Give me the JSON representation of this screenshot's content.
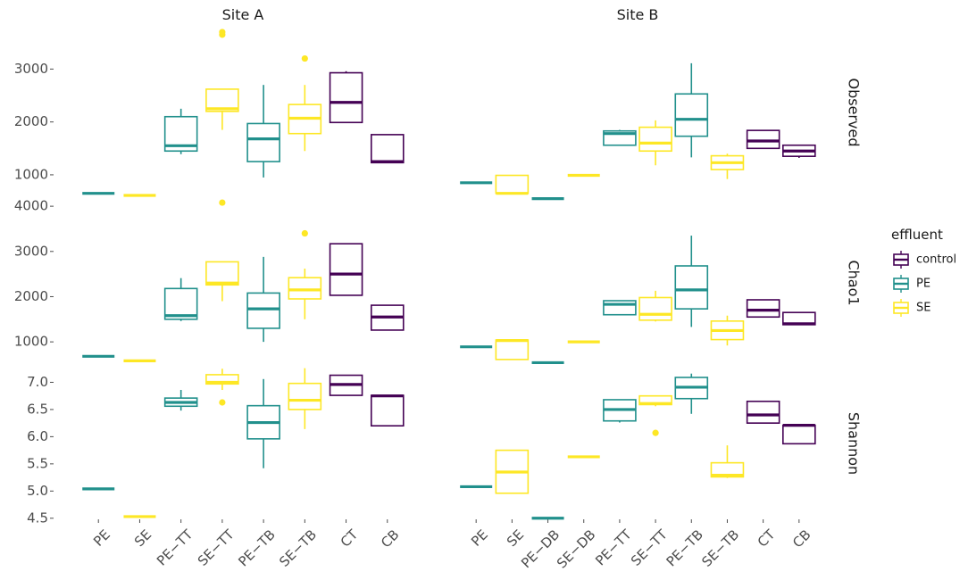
{
  "chart_data": {
    "type": "boxplot",
    "facet_columns": [
      "Site A",
      "Site B"
    ],
    "facet_rows": [
      "Observed",
      "Chao1",
      "Shannon"
    ],
    "legend": {
      "title": "effluent",
      "position": "right",
      "entries": [
        {
          "name": "control",
          "color": "#440154"
        },
        {
          "name": "PE",
          "color": "#21908C"
        },
        {
          "name": "SE",
          "color": "#FDE725"
        }
      ]
    },
    "x_categories": {
      "Site A": [
        "PE",
        "SE",
        "PE−TT",
        "SE−TT",
        "PE−TB",
        "SE−TB",
        "CT",
        "CB"
      ],
      "Site B": [
        "PE",
        "SE",
        "PE−DB",
        "SE−DB",
        "PE−TT",
        "SE−TT",
        "PE−TB",
        "SE−TB",
        "CT",
        "CB"
      ]
    },
    "y_axes": {
      "Observed": {
        "ylim": [
          560,
          3800
        ],
        "ticks": [
          1000,
          2000,
          3000
        ],
        "tick_labels": [
          "1000",
          "2000",
          "3000"
        ]
      },
      "Chao1": {
        "ylim": [
          430,
          4180
        ],
        "ticks": [
          1000,
          2000,
          3000,
          4000
        ],
        "tick_labels": [
          "1000",
          "2000",
          "3000",
          "4000"
        ]
      },
      "Shannon": {
        "ylim": [
          4.48,
          7.27
        ],
        "ticks": [
          4.5,
          5.0,
          5.5,
          6.0,
          6.5,
          7.0
        ],
        "tick_labels": [
          "4.5",
          "5.0",
          "5.5",
          "6.0",
          "6.5",
          "7.0"
        ]
      }
    },
    "panels": {
      "Observed": {
        "Site A": [
          {
            "cat": "PE",
            "group": "PE",
            "min": 650,
            "q1": 650,
            "med": 650,
            "q3": 650,
            "max": 650,
            "outliers": []
          },
          {
            "cat": "SE",
            "group": "SE",
            "min": 610,
            "q1": 610,
            "med": 610,
            "q3": 610,
            "max": 610,
            "outliers": []
          },
          {
            "cat": "PE−TT",
            "group": "PE",
            "min": 1390,
            "q1": 1450,
            "med": 1550,
            "q3": 2100,
            "max": 2250,
            "outliers": []
          },
          {
            "cat": "SE−TT",
            "group": "SE",
            "min": 1850,
            "q1": 2200,
            "med": 2250,
            "q3": 2620,
            "max": 2620,
            "outliers": [
              3650,
              3700
            ]
          },
          {
            "cat": "PE−TB",
            "group": "PE",
            "min": 950,
            "q1": 1250,
            "med": 1680,
            "q3": 1970,
            "max": 2700,
            "outliers": []
          },
          {
            "cat": "SE−TB",
            "group": "SE",
            "min": 1450,
            "q1": 1780,
            "med": 2070,
            "q3": 2330,
            "max": 2700,
            "outliers": [
              3200
            ]
          },
          {
            "cat": "CT",
            "group": "control",
            "min": 1990,
            "q1": 1990,
            "med": 2370,
            "q3": 2930,
            "max": 2960,
            "outliers": []
          },
          {
            "cat": "CB",
            "group": "control",
            "min": 1230,
            "q1": 1230,
            "med": 1250,
            "q3": 1760,
            "max": 1760,
            "outliers": []
          }
        ],
        "Site B": [
          {
            "cat": "PE",
            "group": "PE",
            "min": 850,
            "q1": 850,
            "med": 850,
            "q3": 850,
            "max": 850,
            "outliers": []
          },
          {
            "cat": "SE",
            "group": "SE",
            "min": 640,
            "q1": 650,
            "med": 650,
            "q3": 990,
            "max": 990,
            "outliers": []
          },
          {
            "cat": "PE−DB",
            "group": "PE",
            "min": 550,
            "q1": 550,
            "med": 550,
            "q3": 550,
            "max": 550,
            "outliers": []
          },
          {
            "cat": "SE−DB",
            "group": "SE",
            "min": 990,
            "q1": 990,
            "med": 990,
            "q3": 990,
            "max": 990,
            "outliers": []
          },
          {
            "cat": "PE−TT",
            "group": "PE",
            "min": 1560,
            "q1": 1560,
            "med": 1780,
            "q3": 1830,
            "max": 1850,
            "outliers": []
          },
          {
            "cat": "SE−TT",
            "group": "SE",
            "min": 1180,
            "q1": 1450,
            "med": 1600,
            "q3": 1900,
            "max": 2030,
            "outliers": []
          },
          {
            "cat": "PE−TB",
            "group": "PE",
            "min": 1330,
            "q1": 1730,
            "med": 2050,
            "q3": 2530,
            "max": 3110,
            "outliers": []
          },
          {
            "cat": "SE−TB",
            "group": "SE",
            "min": 920,
            "q1": 1100,
            "med": 1230,
            "q3": 1360,
            "max": 1400,
            "outliers": []
          },
          {
            "cat": "CT",
            "group": "control",
            "min": 1500,
            "q1": 1500,
            "med": 1640,
            "q3": 1840,
            "max": 1840,
            "outliers": []
          },
          {
            "cat": "CB",
            "group": "control",
            "min": 1320,
            "q1": 1350,
            "med": 1450,
            "q3": 1560,
            "max": 1560,
            "outliers": []
          }
        ]
      },
      "Chao1": {
        "Site A": [
          {
            "cat": "PE",
            "group": "PE",
            "min": 680,
            "q1": 680,
            "med": 680,
            "q3": 680,
            "max": 680,
            "outliers": []
          },
          {
            "cat": "SE",
            "group": "SE",
            "min": 580,
            "q1": 580,
            "med": 580,
            "q3": 580,
            "max": 580,
            "outliers": []
          },
          {
            "cat": "PE−TT",
            "group": "PE",
            "min": 1460,
            "q1": 1500,
            "med": 1580,
            "q3": 2180,
            "max": 2410,
            "outliers": []
          },
          {
            "cat": "SE−TT",
            "group": "SE",
            "min": 1900,
            "q1": 2260,
            "med": 2300,
            "q3": 2770,
            "max": 2770,
            "outliers": [
              4080
            ]
          },
          {
            "cat": "PE−TB",
            "group": "PE",
            "min": 1000,
            "q1": 1300,
            "med": 1730,
            "q3": 2080,
            "max": 2880,
            "outliers": []
          },
          {
            "cat": "SE−TB",
            "group": "SE",
            "min": 1500,
            "q1": 1950,
            "med": 2150,
            "q3": 2420,
            "max": 2620,
            "outliers": [
              3400
            ]
          },
          {
            "cat": "CT",
            "group": "control",
            "min": 2030,
            "q1": 2030,
            "med": 2500,
            "q3": 3170,
            "max": 3170,
            "outliers": []
          },
          {
            "cat": "CB",
            "group": "control",
            "min": 1260,
            "q1": 1260,
            "med": 1550,
            "q3": 1810,
            "max": 1810,
            "outliers": []
          }
        ],
        "Site B": [
          {
            "cat": "PE",
            "group": "PE",
            "min": 890,
            "q1": 890,
            "med": 890,
            "q3": 890,
            "max": 890,
            "outliers": []
          },
          {
            "cat": "SE",
            "group": "SE",
            "min": 610,
            "q1": 610,
            "med": 1030,
            "q3": 1040,
            "max": 1040,
            "outliers": []
          },
          {
            "cat": "PE−DB",
            "group": "PE",
            "min": 540,
            "q1": 540,
            "med": 540,
            "q3": 540,
            "max": 540,
            "outliers": []
          },
          {
            "cat": "SE−DB",
            "group": "SE",
            "min": 1000,
            "q1": 1000,
            "med": 1000,
            "q3": 1000,
            "max": 1000,
            "outliers": []
          },
          {
            "cat": "PE−TT",
            "group": "PE",
            "min": 1600,
            "q1": 1600,
            "med": 1830,
            "q3": 1910,
            "max": 1910,
            "outliers": []
          },
          {
            "cat": "SE−TT",
            "group": "SE",
            "min": 1450,
            "q1": 1480,
            "med": 1610,
            "q3": 1980,
            "max": 2130,
            "outliers": []
          },
          {
            "cat": "PE−TB",
            "group": "PE",
            "min": 1330,
            "q1": 1730,
            "med": 2150,
            "q3": 2680,
            "max": 3350,
            "outliers": []
          },
          {
            "cat": "SE−TB",
            "group": "SE",
            "min": 920,
            "q1": 1050,
            "med": 1250,
            "q3": 1460,
            "max": 1580,
            "outliers": []
          },
          {
            "cat": "CT",
            "group": "control",
            "min": 1550,
            "q1": 1550,
            "med": 1700,
            "q3": 1930,
            "max": 1930,
            "outliers": []
          },
          {
            "cat": "CB",
            "group": "control",
            "min": 1380,
            "q1": 1380,
            "med": 1400,
            "q3": 1650,
            "max": 1650,
            "outliers": []
          }
        ]
      },
      "Shannon": {
        "Site A": [
          {
            "cat": "PE",
            "group": "PE",
            "min": 5.04,
            "q1": 5.04,
            "med": 5.04,
            "q3": 5.04,
            "max": 5.04,
            "outliers": []
          },
          {
            "cat": "SE",
            "group": "SE",
            "min": 4.53,
            "q1": 4.53,
            "med": 4.53,
            "q3": 4.53,
            "max": 4.53,
            "outliers": []
          },
          {
            "cat": "PE−TT",
            "group": "PE",
            "min": 6.48,
            "q1": 6.56,
            "med": 6.63,
            "q3": 6.71,
            "max": 6.86,
            "outliers": []
          },
          {
            "cat": "SE−TT",
            "group": "SE",
            "min": 6.86,
            "q1": 6.97,
            "med": 7.0,
            "q3": 7.14,
            "max": 7.25,
            "outliers": [
              6.63
            ]
          },
          {
            "cat": "PE−TB",
            "group": "PE",
            "min": 5.42,
            "q1": 5.96,
            "med": 6.26,
            "q3": 6.57,
            "max": 7.06,
            "outliers": []
          },
          {
            "cat": "SE−TB",
            "group": "SE",
            "min": 6.14,
            "q1": 6.5,
            "med": 6.67,
            "q3": 6.98,
            "max": 7.26,
            "outliers": []
          },
          {
            "cat": "CT",
            "group": "control",
            "min": 6.76,
            "q1": 6.76,
            "med": 6.96,
            "q3": 7.13,
            "max": 7.13,
            "outliers": []
          },
          {
            "cat": "CB",
            "group": "control",
            "min": 6.2,
            "q1": 6.2,
            "med": 6.75,
            "q3": 6.76,
            "max": 6.76,
            "outliers": []
          }
        ],
        "Site B": [
          {
            "cat": "PE",
            "group": "PE",
            "min": 5.08,
            "q1": 5.08,
            "med": 5.08,
            "q3": 5.08,
            "max": 5.08,
            "outliers": []
          },
          {
            "cat": "SE",
            "group": "SE",
            "min": 4.96,
            "q1": 4.96,
            "med": 5.35,
            "q3": 5.75,
            "max": 5.75,
            "outliers": []
          },
          {
            "cat": "PE−DB",
            "group": "PE",
            "min": 4.5,
            "q1": 4.5,
            "med": 4.5,
            "q3": 4.5,
            "max": 4.5,
            "outliers": []
          },
          {
            "cat": "SE−DB",
            "group": "SE",
            "min": 5.63,
            "q1": 5.63,
            "med": 5.63,
            "q3": 5.63,
            "max": 5.63,
            "outliers": []
          },
          {
            "cat": "PE−TT",
            "group": "PE",
            "min": 6.26,
            "q1": 6.29,
            "med": 6.5,
            "q3": 6.68,
            "max": 6.68,
            "outliers": []
          },
          {
            "cat": "SE−TT",
            "group": "SE",
            "min": 6.56,
            "q1": 6.59,
            "med": 6.61,
            "q3": 6.75,
            "max": 6.75,
            "outliers": [
              6.07
            ]
          },
          {
            "cat": "PE−TB",
            "group": "PE",
            "min": 6.42,
            "q1": 6.7,
            "med": 6.91,
            "q3": 7.09,
            "max": 7.16,
            "outliers": []
          },
          {
            "cat": "SE−TB",
            "group": "SE",
            "min": 5.24,
            "q1": 5.26,
            "med": 5.29,
            "q3": 5.52,
            "max": 5.84,
            "outliers": []
          },
          {
            "cat": "CT",
            "group": "control",
            "min": 6.25,
            "q1": 6.25,
            "med": 6.4,
            "q3": 6.65,
            "max": 6.65,
            "outliers": []
          },
          {
            "cat": "CB",
            "group": "control",
            "min": 5.87,
            "q1": 5.87,
            "med": 6.21,
            "q3": 6.21,
            "max": 6.21,
            "outliers": []
          }
        ]
      }
    }
  }
}
